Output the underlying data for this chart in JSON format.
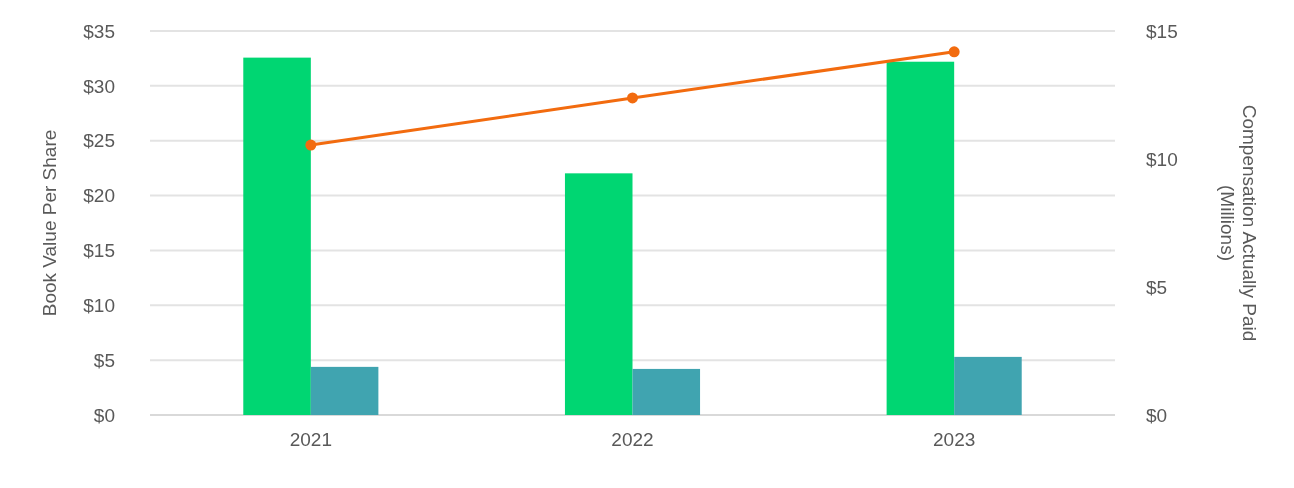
{
  "chart_data": {
    "type": "bar",
    "ylabel": "Book Value Per Share",
    "y2label": "Compensation Actually Paid (Millions)",
    "categories": [
      "2021",
      "2022",
      "2023"
    ],
    "series": [
      {
        "axis": "y2",
        "color": "#00d672",
        "values": [
          13.96,
          9.44,
          13.8
        ]
      },
      {
        "axis": "y2",
        "color": "#40a4b0",
        "values": [
          1.88,
          1.8,
          2.27
        ]
      },
      {
        "type": "line",
        "axis": "y",
        "color": "#f26b0f",
        "values": [
          24.6,
          28.9,
          33.1
        ]
      }
    ],
    "ylim": [
      0,
      35
    ],
    "yticks": [
      {
        "value": 0,
        "label": "$0"
      },
      {
        "value": 5,
        "label": "$5"
      },
      {
        "value": 10,
        "label": "$10"
      },
      {
        "value": 15,
        "label": "$15"
      },
      {
        "value": 20,
        "label": "$20"
      },
      {
        "value": 25,
        "label": "$25"
      },
      {
        "value": 30,
        "label": "$30"
      },
      {
        "value": 35,
        "label": "$35"
      }
    ],
    "y2lim": [
      0,
      15
    ],
    "y2ticks": [
      {
        "value": 0,
        "label": "$0"
      },
      {
        "value": 5,
        "label": "$5"
      },
      {
        "value": 10,
        "label": "$10"
      },
      {
        "value": 15,
        "label": "$15"
      }
    ],
    "grid": "y",
    "marker": "circle",
    "line_style": "solid"
  }
}
